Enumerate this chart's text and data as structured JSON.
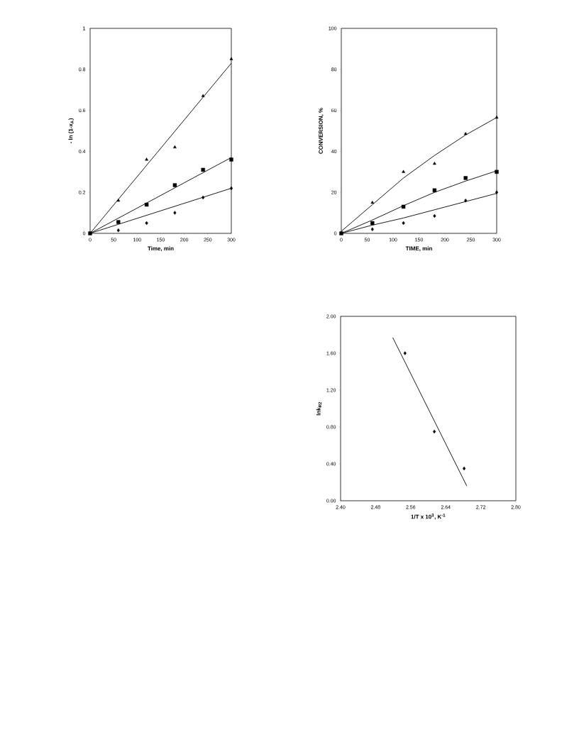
{
  "chart_data": [
    {
      "type": "scatter",
      "xlabel": "Time, min",
      "ylabel": "- ln (1-x$_{A}$)",
      "xlim": [
        0,
        300
      ],
      "ylim": [
        0,
        1
      ],
      "xticks": [
        0,
        50,
        100,
        150,
        200,
        250,
        300
      ],
      "yticks": [
        0,
        0.2,
        0.4,
        0.6,
        0.8,
        1
      ],
      "series": [
        {
          "type": "line",
          "color": "#000000",
          "x": [
            0,
            300
          ],
          "values": [
            0,
            0.83
          ]
        },
        {
          "type": "line",
          "color": "#000000",
          "x": [
            0,
            300
          ],
          "values": [
            0,
            0.37
          ]
        },
        {
          "type": "line",
          "color": "#000000",
          "x": [
            0,
            300
          ],
          "values": [
            0,
            0.22
          ]
        },
        {
          "marker": "triangle",
          "color": "#000000",
          "x": [
            60,
            120,
            180,
            240,
            300
          ],
          "values": [
            0.16,
            0.36,
            0.42,
            0.67,
            0.85
          ]
        },
        {
          "marker": "diamond",
          "color": "#000000",
          "x": [
            60,
            120,
            180,
            240,
            300
          ],
          "values": [
            0.015,
            0.05,
            0.1,
            0.175,
            0.22
          ]
        },
        {
          "marker": "square",
          "color": "#000000",
          "x": [
            0,
            60,
            120,
            180,
            240,
            300
          ],
          "values": [
            0,
            0.055,
            0.14,
            0.235,
            0.31,
            0.36
          ]
        }
      ]
    },
    {
      "type": "scatter",
      "xlabel": "TIME, min",
      "ylabel": "CONVERSION, %",
      "xlim": [
        0,
        300
      ],
      "ylim": [
        0,
        100
      ],
      "xticks": [
        0,
        50,
        100,
        150,
        200,
        250,
        300
      ],
      "yticks": [
        0,
        20,
        40,
        60,
        80,
        100
      ],
      "series": [
        {
          "type": "line",
          "color": "#000000",
          "x": [
            0,
            60,
            120,
            180,
            240,
            300
          ],
          "values": [
            1,
            14,
            27,
            38,
            48,
            56.5
          ]
        },
        {
          "type": "line",
          "color": "#000000",
          "x": [
            0,
            60,
            120,
            180,
            240,
            300
          ],
          "values": [
            0,
            6.5,
            13.5,
            20,
            25.5,
            30.5
          ]
        },
        {
          "type": "line",
          "color": "#000000",
          "x": [
            0,
            60,
            120,
            180,
            240,
            300
          ],
          "values": [
            0,
            4,
            7.5,
            11.5,
            15.5,
            19.5
          ]
        },
        {
          "marker": "triangle",
          "color": "#000000",
          "x": [
            60,
            120,
            180,
            240,
            300
          ],
          "values": [
            15,
            30,
            34,
            48.5,
            56.5
          ]
        },
        {
          "marker": "diamond",
          "color": "#000000",
          "x": [
            60,
            120,
            180,
            240,
            300
          ],
          "values": [
            2,
            5,
            8.5,
            16,
            20
          ]
        },
        {
          "marker": "square",
          "color": "#000000",
          "x": [
            0,
            60,
            120,
            180,
            240,
            300
          ],
          "values": [
            0,
            5,
            13,
            21,
            27,
            30
          ]
        }
      ]
    },
    {
      "type": "scatter",
      "xlabel": "1/T x 10$^{3}$, K$^{-1}$",
      "ylabel": "lnk$_{R2}$",
      "xlim": [
        2.4,
        2.8
      ],
      "ylim": [
        0,
        2
      ],
      "xticks": [
        {
          "value": 2.4,
          "label": "2.40"
        },
        {
          "value": 2.48,
          "label": "2.48"
        },
        {
          "value": 2.56,
          "label": "2.56"
        },
        {
          "value": 2.64,
          "label": "2.64"
        },
        {
          "value": 2.72,
          "label": "2.72"
        },
        {
          "value": 2.8,
          "label": "2.80"
        }
      ],
      "yticks": [
        {
          "value": 0,
          "label": "0.00"
        },
        {
          "value": 0.4,
          "label": "0.40"
        },
        {
          "value": 0.8,
          "label": "0.80"
        },
        {
          "value": 1.2,
          "label": "1.20"
        },
        {
          "value": 1.6,
          "label": "1.60"
        },
        {
          "value": 2,
          "label": "2.00"
        }
      ],
      "series": [
        {
          "type": "line",
          "color": "#000000",
          "x": [
            2.519,
            2.688
          ],
          "values": [
            1.77,
            0.16
          ]
        },
        {
          "marker": "diamond",
          "color": "#000000",
          "x": [
            2.547,
            2.614,
            2.682
          ],
          "values": [
            1.6,
            0.75,
            0.35
          ]
        }
      ]
    }
  ]
}
